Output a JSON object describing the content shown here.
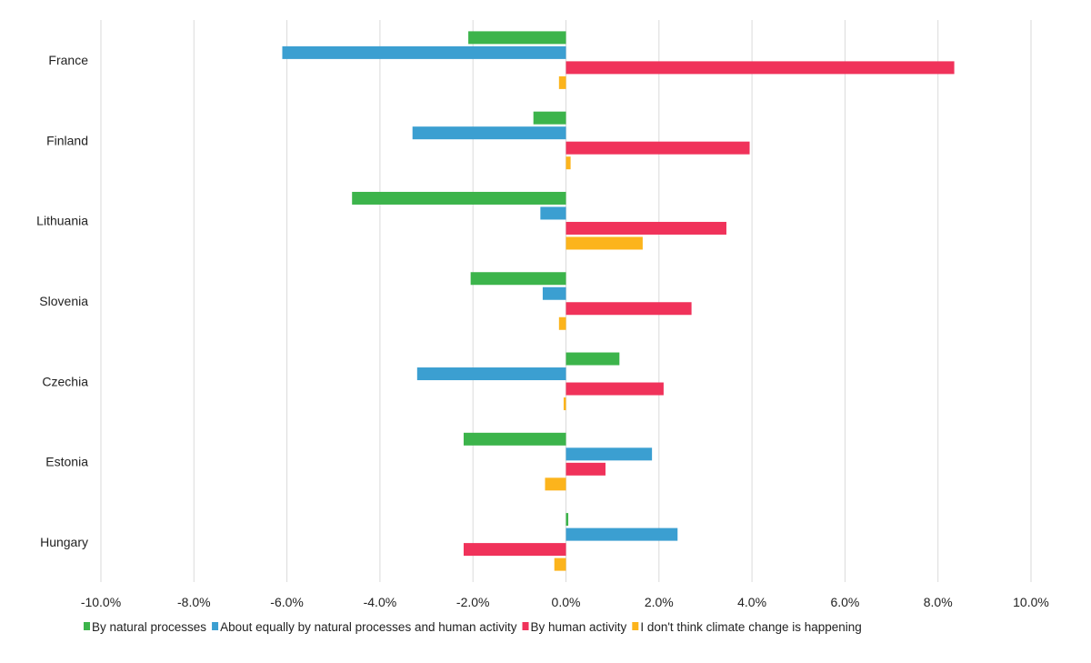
{
  "chart_data": {
    "type": "bar",
    "orientation": "horizontal",
    "title": "",
    "xlabel": "",
    "ylabel": "",
    "xlim": [
      -10,
      10
    ],
    "x_ticks": [
      "-10.0%",
      "-8.0%",
      "-6.0%",
      "-4.0%",
      "-2.0%",
      "0.0%",
      "2.0%",
      "4.0%",
      "6.0%",
      "8.0%",
      "10.0%"
    ],
    "grid": "vertical",
    "legend_position": "bottom",
    "categories": [
      "France",
      "Finland",
      "Lithuania",
      "Slovenia",
      "Czechia",
      "Estonia",
      "Hungary"
    ],
    "series": [
      {
        "name": "By natural processes",
        "color": "#3cb44b",
        "values": [
          -2.1,
          -0.7,
          -4.6,
          -2.05,
          1.15,
          -2.2,
          0.05
        ]
      },
      {
        "name": "About equally by natural processes and human activity",
        "color": "#3b9fd1",
        "values": [
          -6.1,
          -3.3,
          -0.55,
          -0.5,
          -3.2,
          1.85,
          2.4
        ]
      },
      {
        "name": "By human activity",
        "color": "#f0325a",
        "values": [
          8.35,
          3.95,
          3.45,
          2.7,
          2.1,
          0.85,
          -2.2
        ]
      },
      {
        "name": "I don't think climate change is happening",
        "color": "#fcb41c",
        "values": [
          -0.15,
          0.1,
          1.65,
          -0.15,
          -0.05,
          -0.45,
          -0.25
        ]
      }
    ]
  }
}
